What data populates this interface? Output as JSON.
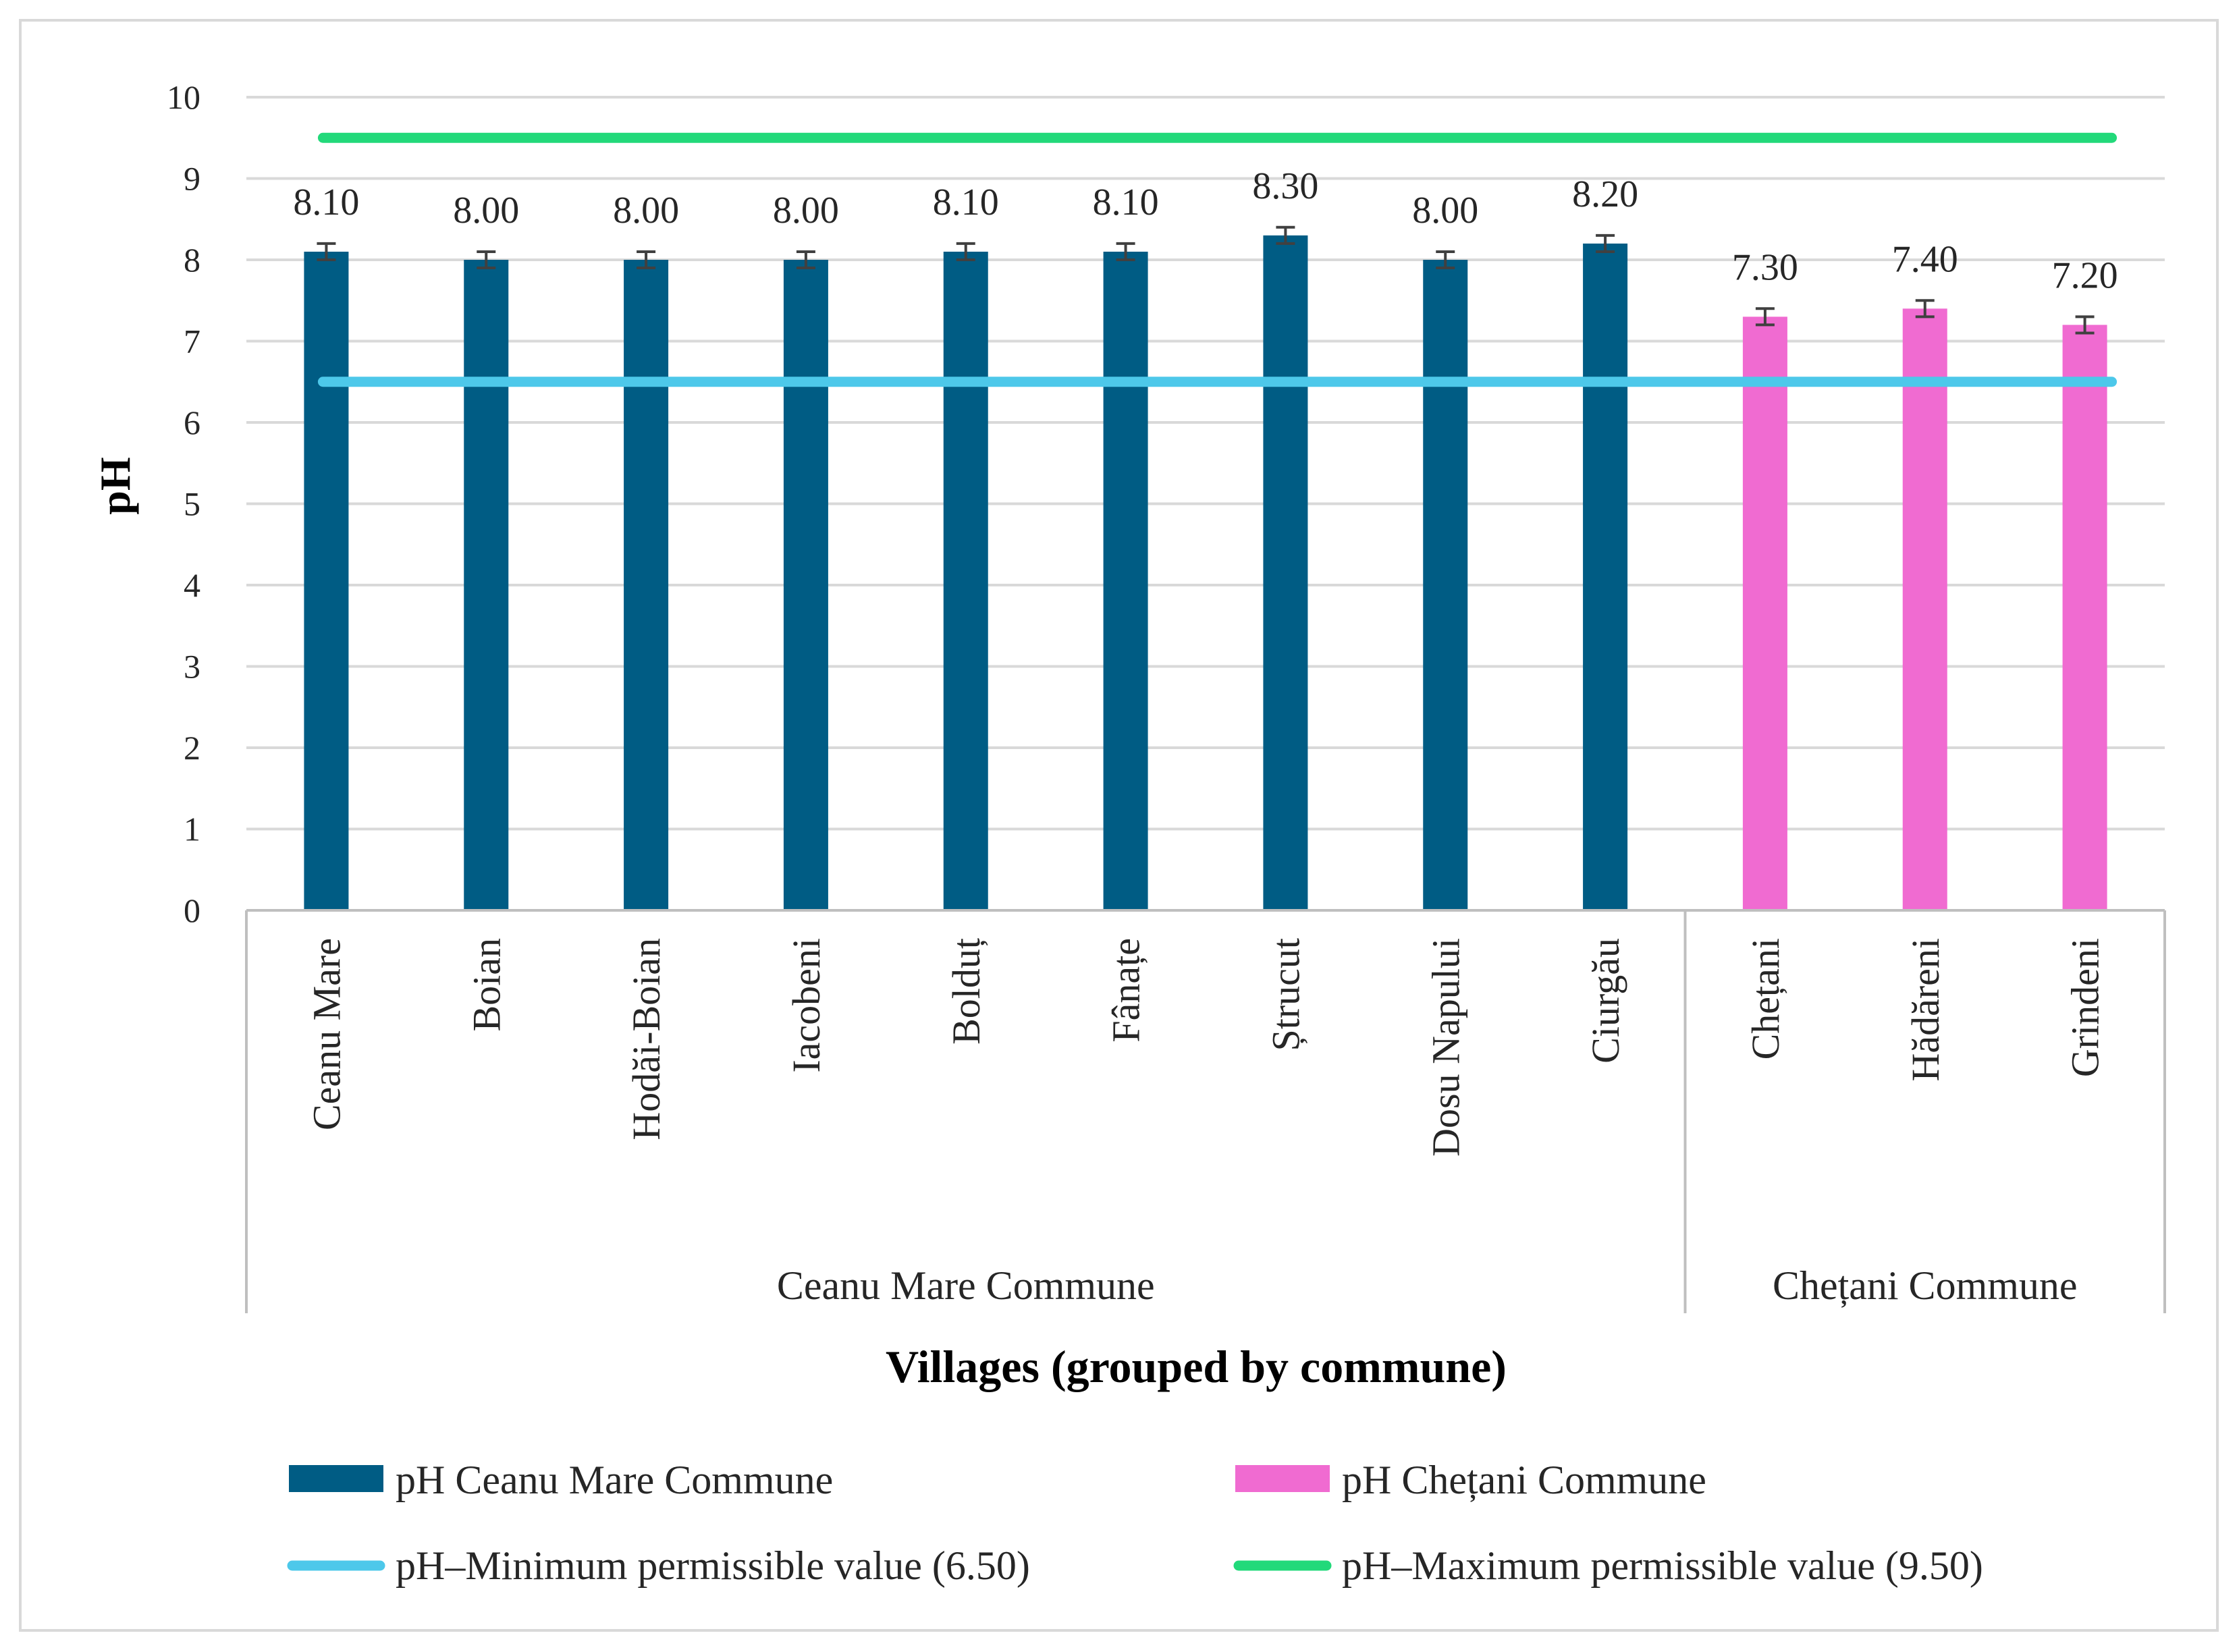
{
  "chart_data": {
    "type": "bar",
    "title": "",
    "ylabel": "pH",
    "xlabel": "Villages (grouped by commune)",
    "ylim": [
      0,
      10
    ],
    "yticks": [
      0,
      1,
      2,
      3,
      4,
      5,
      6,
      7,
      8,
      9,
      10
    ],
    "grid": true,
    "legend_position": "bottom",
    "categories": [
      "Ceanu Mare",
      "Boian",
      "Hodăi-Boian",
      "Iacobeni",
      "Bolduț",
      "Fânațe",
      "Ștrucut",
      "Dosu Napului",
      "Ciurgău",
      "Chețani",
      "Hădăreni",
      "Grindeni"
    ],
    "groups": [
      {
        "name": "Ceanu Mare Commune",
        "count": 9
      },
      {
        "name": "Chețani Commune",
        "count": 3
      }
    ],
    "series": [
      {
        "name": "pH Ceanu Mare Commune",
        "color": "#005C84",
        "values": [
          8.1,
          8.0,
          8.0,
          8.0,
          8.1,
          8.1,
          8.3,
          8.0,
          8.2,
          null,
          null,
          null
        ]
      },
      {
        "name": "pH Chețani Commune",
        "color": "#F06BD1",
        "values": [
          null,
          null,
          null,
          null,
          null,
          null,
          null,
          null,
          null,
          7.3,
          7.4,
          7.2
        ]
      }
    ],
    "data_labels": [
      "8.10",
      "8.00",
      "8.00",
      "8.00",
      "8.10",
      "8.10",
      "8.30",
      "8.00",
      "8.20",
      "7.30",
      "7.40",
      "7.20"
    ],
    "error": 0.1,
    "reference_lines": [
      {
        "name": "pH–Minimum permissible value (6.50)",
        "value": 6.5,
        "color": "#4DC8EA"
      },
      {
        "name": "pH–Maximum permissible value (9.50)",
        "value": 9.5,
        "color": "#22D97A"
      }
    ]
  }
}
